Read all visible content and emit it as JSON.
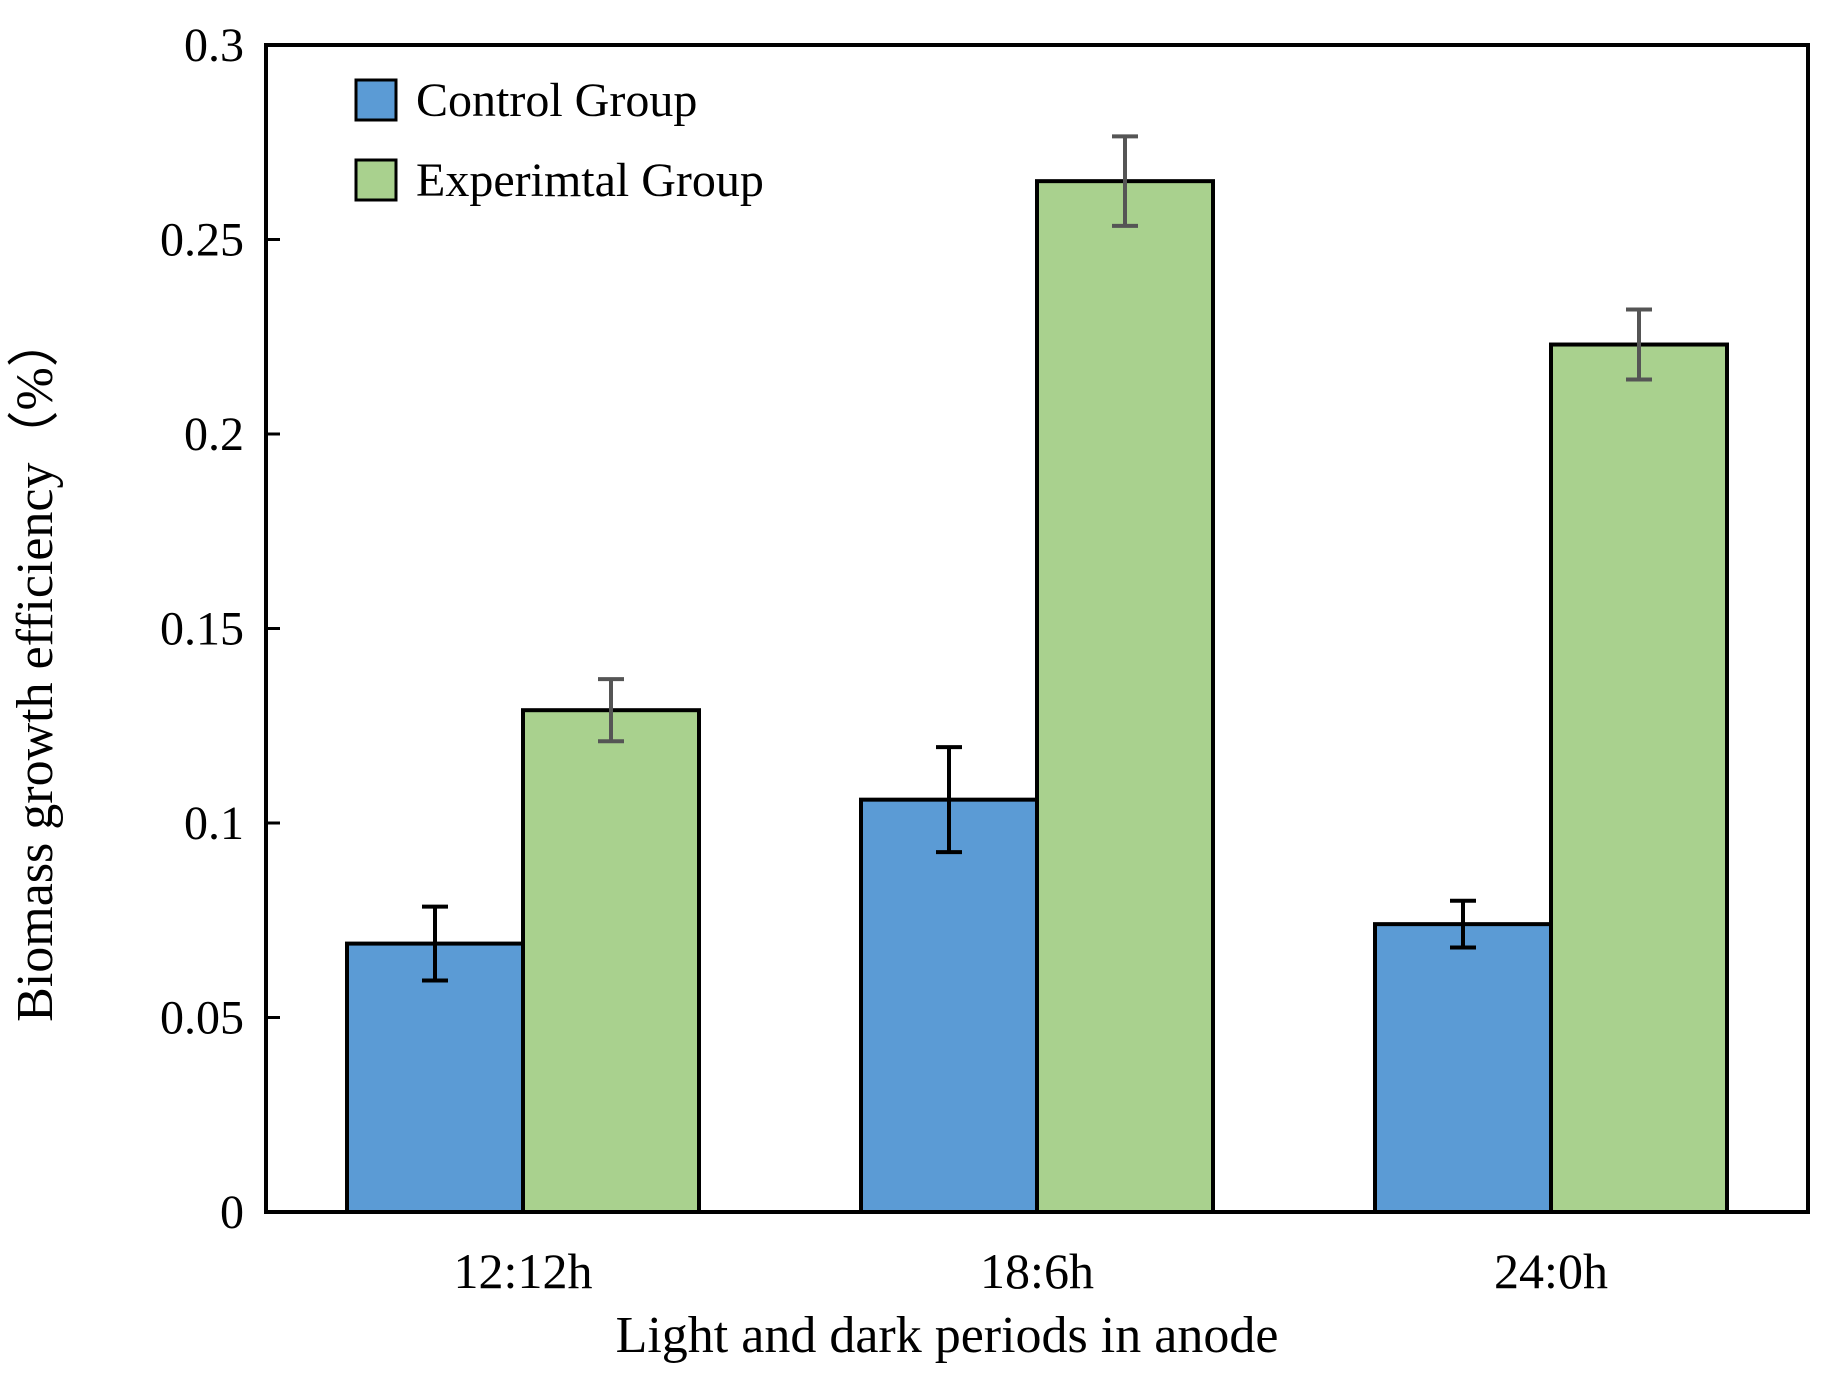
{
  "chart_data": {
    "type": "bar",
    "title": "",
    "xlabel": "Light and dark periods in anode",
    "ylabel": "Biomass growth efficiency（%）",
    "ylim": [
      0,
      0.3
    ],
    "yticks": [
      0,
      0.05,
      0.1,
      0.15,
      0.2,
      0.25,
      0.3
    ],
    "ytick_labels": [
      "0",
      "0.05",
      "0.1",
      "0.15",
      "0.2",
      "0.25",
      "0.3"
    ],
    "categories": [
      "12:12h",
      "18:6h",
      "24:0h"
    ],
    "legend_position": "top-left",
    "grid": false,
    "series": [
      {
        "name": "Control Group",
        "color": "#5b9bd5",
        "error_color": "#000000",
        "values": [
          0.069,
          0.106,
          0.074
        ],
        "errors": [
          0.0095,
          0.0135,
          0.006
        ]
      },
      {
        "name": "Experimtal Group",
        "color": "#a9d18e",
        "error_color": "#555555",
        "values": [
          0.129,
          0.265,
          0.223
        ],
        "errors": [
          0.008,
          0.0115,
          0.009
        ]
      }
    ]
  }
}
